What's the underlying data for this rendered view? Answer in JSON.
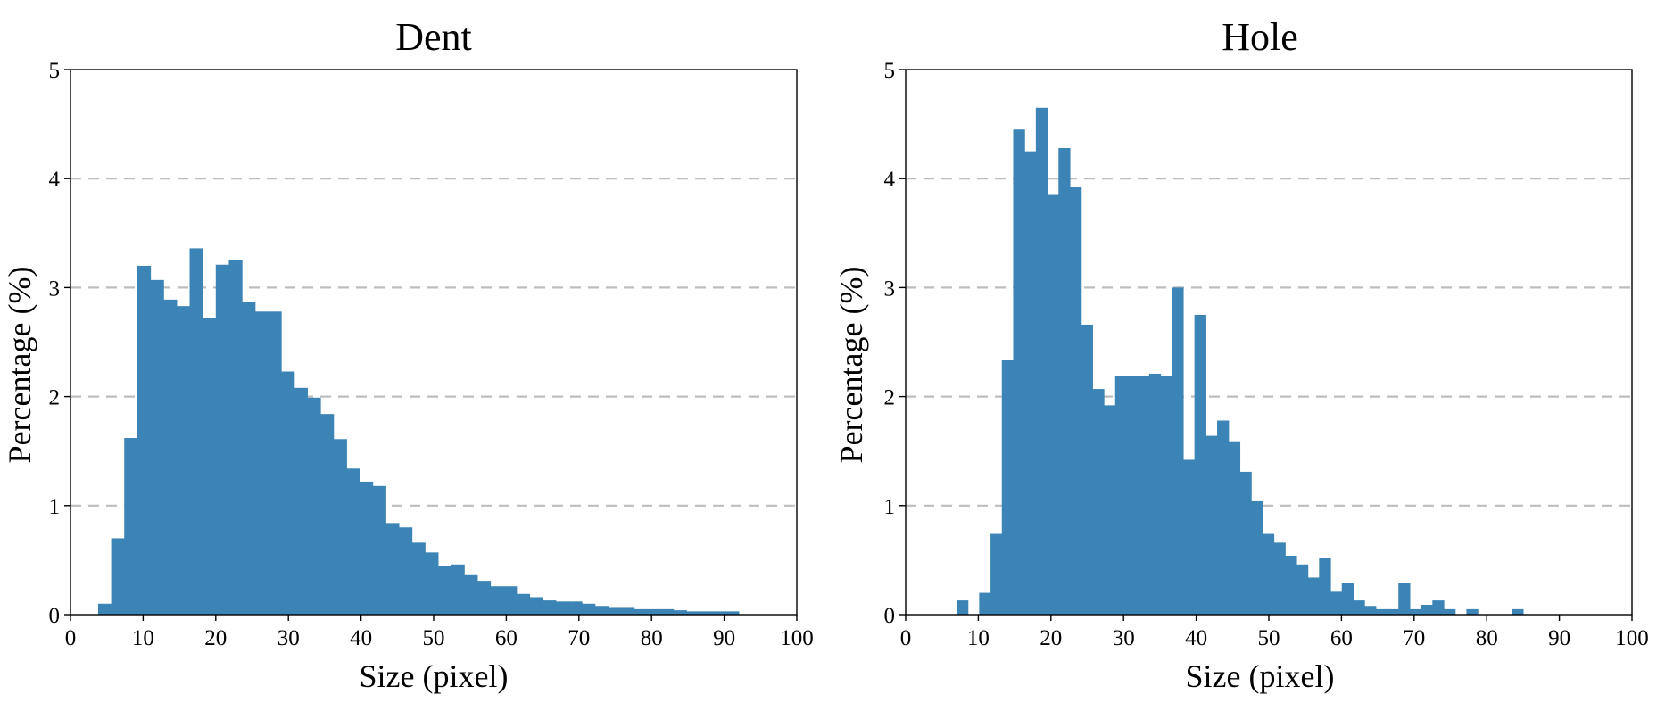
{
  "chart_data": [
    {
      "type": "bar",
      "title": "Dent",
      "xlabel": "Size (pixel)",
      "ylabel": "Percentage (%)",
      "xlim": [
        0,
        100
      ],
      "ylim": [
        0,
        5
      ],
      "xticks": [
        "0",
        "10",
        "20",
        "30",
        "40",
        "50",
        "60",
        "70",
        "80",
        "90",
        "100"
      ],
      "yticks": [
        "0",
        "1",
        "2",
        "3",
        "4",
        "5"
      ],
      "grid": "horizontal dashed",
      "bar_color": "#3b84b5",
      "bin_width": 1.8,
      "x_start": 3.8,
      "values": [
        0.1,
        0.7,
        1.62,
        3.2,
        3.07,
        2.89,
        2.83,
        3.36,
        2.72,
        3.21,
        3.25,
        2.87,
        2.78,
        2.78,
        2.23,
        2.08,
        1.99,
        1.84,
        1.61,
        1.34,
        1.22,
        1.18,
        0.84,
        0.8,
        0.66,
        0.57,
        0.45,
        0.46,
        0.37,
        0.31,
        0.26,
        0.26,
        0.19,
        0.16,
        0.13,
        0.12,
        0.12,
        0.1,
        0.08,
        0.07,
        0.07,
        0.05,
        0.05,
        0.05,
        0.04,
        0.03,
        0.03,
        0.03,
        0.03
      ]
    },
    {
      "type": "bar",
      "title": "Hole",
      "xlabel": "Size (pixel)",
      "ylabel": "Percentage (%)",
      "xlim": [
        0,
        100
      ],
      "ylim": [
        0,
        5
      ],
      "xticks": [
        "0",
        "10",
        "20",
        "30",
        "40",
        "50",
        "60",
        "70",
        "80",
        "90",
        "100"
      ],
      "yticks": [
        "0",
        "1",
        "2",
        "3",
        "4",
        "5"
      ],
      "grid": "horizontal dashed",
      "bar_color": "#3b84b5",
      "bin_width": 1.56,
      "x_start": 7.0,
      "values": [
        0.13,
        0.0,
        0.2,
        0.74,
        2.34,
        4.45,
        4.25,
        4.65,
        3.85,
        4.28,
        3.92,
        2.66,
        2.07,
        1.92,
        2.19,
        2.19,
        2.19,
        2.21,
        2.19,
        3.0,
        1.42,
        2.75,
        1.64,
        1.78,
        1.59,
        1.31,
        1.04,
        0.74,
        0.66,
        0.54,
        0.46,
        0.34,
        0.52,
        0.21,
        0.29,
        0.13,
        0.08,
        0.05,
        0.05,
        0.29,
        0.05,
        0.09,
        0.13,
        0.05,
        0.0,
        0.05,
        0.0,
        0.0,
        0.0,
        0.05
      ]
    }
  ]
}
